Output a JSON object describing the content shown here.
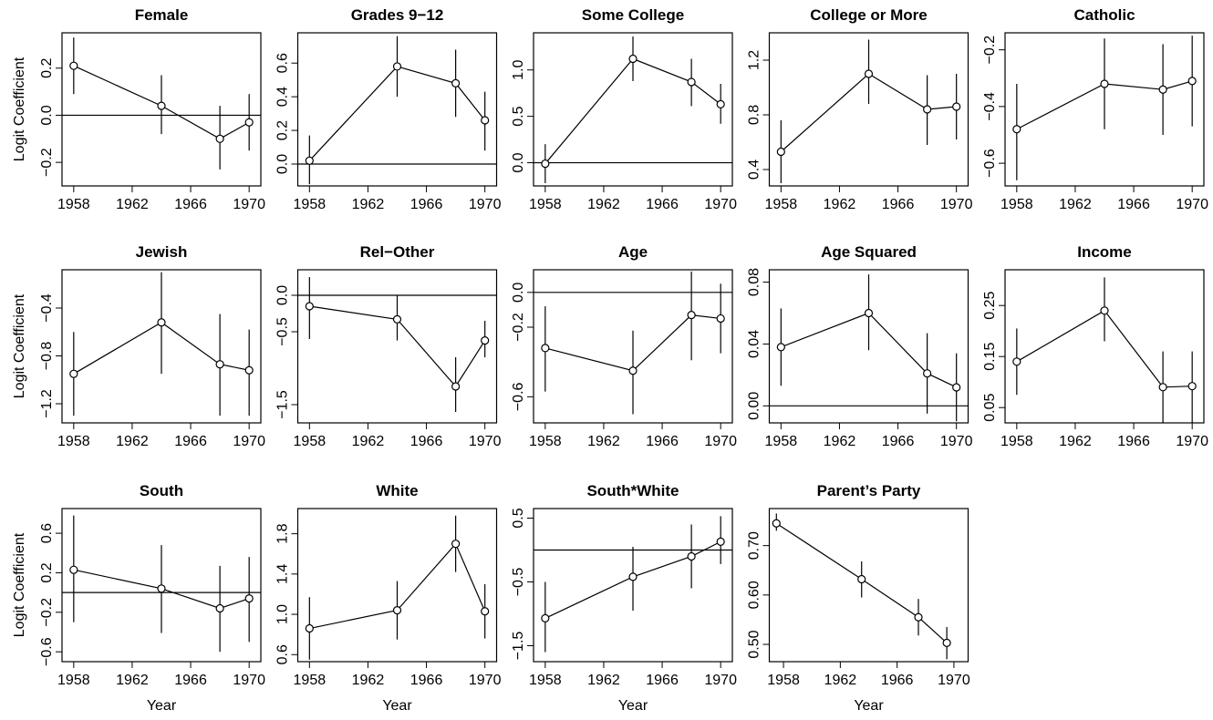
{
  "chart_data": [
    {
      "type": "line",
      "title": "Female",
      "y_label": "Logit Coefficient",
      "x": [
        1958,
        1964,
        1968,
        1970
      ],
      "values": [
        0.21,
        0.04,
        -0.1,
        -0.03
      ],
      "lower": [
        0.09,
        -0.08,
        -0.23,
        -0.15
      ],
      "upper": [
        0.33,
        0.17,
        0.04,
        0.09
      ],
      "reference_line": 0,
      "xlim": [
        1957.2,
        1970.8
      ],
      "xticks": [
        1958,
        1962,
        1966,
        1970
      ],
      "ylim": [
        -0.3,
        0.35
      ],
      "yticks": [
        {
          "value": -0.2,
          "label": "−0.2"
        },
        {
          "value": 0,
          "label": "0.0"
        },
        0.2
      ],
      "color": "#000000"
    },
    {
      "type": "line",
      "title": "Grades 9−12",
      "x": [
        1958,
        1964,
        1968,
        1970
      ],
      "values": [
        0.02,
        0.58,
        0.48,
        0.26
      ],
      "lower": [
        -0.12,
        0.4,
        0.28,
        0.08
      ],
      "upper": [
        0.17,
        0.76,
        0.68,
        0.43
      ],
      "reference_line": 0,
      "xlim": [
        1957.2,
        1970.8
      ],
      "xticks": [
        1958,
        1962,
        1966,
        1970
      ],
      "ylim": [
        -0.13,
        0.78
      ],
      "yticks": [
        {
          "value": 0,
          "label": "0.0"
        },
        0.2,
        0.4,
        0.6
      ],
      "color": "#000000"
    },
    {
      "type": "line",
      "title": "Some College",
      "x": [
        1958,
        1964,
        1968,
        1970
      ],
      "values": [
        -0.01,
        1.12,
        0.87,
        0.63
      ],
      "lower": [
        -0.22,
        0.88,
        0.61,
        0.42
      ],
      "upper": [
        0.2,
        1.36,
        1.12,
        0.85
      ],
      "reference_line": 0,
      "xlim": [
        1957.2,
        1970.8
      ],
      "xticks": [
        1958,
        1962,
        1966,
        1970
      ],
      "ylim": [
        -0.25,
        1.4
      ],
      "yticks": [
        {
          "value": 0,
          "label": "0.0"
        },
        0.5,
        {
          "value": 1,
          "label": "1.0"
        }
      ],
      "color": "#000000"
    },
    {
      "type": "line",
      "title": "College or More",
      "x": [
        1958,
        1964,
        1968,
        1970
      ],
      "values": [
        0.53,
        1.1,
        0.84,
        0.86
      ],
      "lower": [
        0.3,
        0.88,
        0.58,
        0.62
      ],
      "upper": [
        0.76,
        1.35,
        1.09,
        1.1
      ],
      "xlim": [
        1957.2,
        1970.8
      ],
      "xticks": [
        1958,
        1962,
        1966,
        1970
      ],
      "ylim": [
        0.28,
        1.4
      ],
      "yticks": [
        0.4,
        0.8,
        1.2
      ],
      "color": "#000000"
    },
    {
      "type": "line",
      "title": "Catholic",
      "x": [
        1958,
        1964,
        1968,
        1970
      ],
      "values": [
        -0.48,
        -0.32,
        -0.34,
        -0.31
      ],
      "lower": [
        -0.66,
        -0.48,
        -0.5,
        -0.47
      ],
      "upper": [
        -0.32,
        -0.16,
        -0.18,
        -0.15
      ],
      "xlim": [
        1957.2,
        1970.8
      ],
      "xticks": [
        1958,
        1962,
        1966,
        1970
      ],
      "ylim": [
        -0.68,
        -0.14
      ],
      "yticks": [
        {
          "value": -0.6,
          "label": "−0.6"
        },
        {
          "value": -0.4,
          "label": "−0.4"
        },
        {
          "value": -0.2,
          "label": "−0.2"
        }
      ],
      "color": "#000000"
    },
    {
      "type": "line",
      "title": "Jewish",
      "y_label": "Logit Coefficient",
      "x": [
        1958,
        1964,
        1968,
        1970
      ],
      "values": [
        -0.95,
        -0.52,
        -0.87,
        -0.92
      ],
      "lower": [
        -1.3,
        -0.95,
        -1.3,
        -1.3
      ],
      "upper": [
        -0.6,
        -0.1,
        -0.45,
        -0.58
      ],
      "xlim": [
        1957.2,
        1970.8
      ],
      "xticks": [
        1958,
        1962,
        1966,
        1970
      ],
      "ylim": [
        -1.36,
        -0.08
      ],
      "yticks": [
        {
          "value": -1.2,
          "label": "−1.2"
        },
        {
          "value": -0.8,
          "label": "−0.8"
        },
        {
          "value": -0.4,
          "label": "−0.4"
        }
      ],
      "color": "#000000"
    },
    {
      "type": "line",
      "title": "Rel−Other",
      "x": [
        1958,
        1964,
        1968,
        1970
      ],
      "values": [
        -0.15,
        -0.33,
        -1.25,
        -0.62
      ],
      "lower": [
        -0.6,
        -0.62,
        -1.6,
        -0.85
      ],
      "upper": [
        0.25,
        0.0,
        -0.85,
        -0.35
      ],
      "reference_line": 0,
      "xlim": [
        1957.2,
        1970.8
      ],
      "xticks": [
        1958,
        1962,
        1966,
        1970
      ],
      "ylim": [
        -1.75,
        0.35
      ],
      "yticks": [
        {
          "value": -1.5,
          "label": "−1.5"
        },
        {
          "value": -0.5,
          "label": "−0.5"
        },
        {
          "value": 0,
          "label": "0.0"
        }
      ],
      "color": "#000000"
    },
    {
      "type": "line",
      "title": "Age",
      "x": [
        1958,
        1964,
        1968,
        1970
      ],
      "values": [
        -0.32,
        -0.45,
        -0.13,
        -0.15
      ],
      "lower": [
        -0.57,
        -0.7,
        -0.39,
        -0.35
      ],
      "upper": [
        -0.08,
        -0.22,
        0.12,
        0.05
      ],
      "reference_line": 0,
      "xlim": [
        1957.2,
        1970.8
      ],
      "xticks": [
        1958,
        1962,
        1966,
        1970
      ],
      "ylim": [
        -0.75,
        0.13
      ],
      "yticks": [
        {
          "value": -0.6,
          "label": "−0.6"
        },
        {
          "value": -0.2,
          "label": "−0.2"
        },
        {
          "value": 0,
          "label": "0.0"
        }
      ],
      "color": "#000000"
    },
    {
      "type": "line",
      "title": "Age Squared",
      "x": [
        1958,
        1964,
        1968,
        1970
      ],
      "values": [
        0.038,
        0.06,
        0.021,
        0.012
      ],
      "lower": [
        0.013,
        0.036,
        -0.005,
        -0.01
      ],
      "upper": [
        0.063,
        0.085,
        0.047,
        0.034
      ],
      "reference_line": 0,
      "xlim": [
        1957.2,
        1970.8
      ],
      "xticks": [
        1958,
        1962,
        1966,
        1970
      ],
      "ylim": [
        -0.011,
        0.088
      ],
      "yticks": [
        {
          "value": 0,
          "label": "0.00"
        },
        0.04,
        0.08
      ],
      "color": "#000000"
    },
    {
      "type": "line",
      "title": "Income",
      "x": [
        1958,
        1964,
        1968,
        1970
      ],
      "values": [
        0.14,
        0.24,
        0.09,
        0.092
      ],
      "lower": [
        0.075,
        0.18,
        0.02,
        0.02
      ],
      "upper": [
        0.205,
        0.305,
        0.16,
        0.16
      ],
      "xlim": [
        1957.2,
        1970.8
      ],
      "xticks": [
        1958,
        1962,
        1966,
        1970
      ],
      "ylim": [
        0.02,
        0.32
      ],
      "yticks": [
        0.05,
        0.15,
        0.25
      ],
      "color": "#000000"
    },
    {
      "type": "line",
      "title": "South",
      "y_label": "Logit Coefficient",
      "x_label": "Year",
      "x": [
        1958,
        1964,
        1968,
        1970
      ],
      "values": [
        0.23,
        0.04,
        -0.16,
        -0.06
      ],
      "lower": [
        -0.3,
        -0.41,
        -0.6,
        -0.5
      ],
      "upper": [
        0.78,
        0.48,
        0.27,
        0.36
      ],
      "reference_line": 0,
      "xlim": [
        1957.2,
        1970.8
      ],
      "xticks": [
        1958,
        1962,
        1966,
        1970
      ],
      "ylim": [
        -0.7,
        0.85
      ],
      "yticks": [
        {
          "value": -0.6,
          "label": "−0.6"
        },
        {
          "value": -0.2,
          "label": "−0.2"
        },
        0.2,
        0.6
      ],
      "color": "#000000"
    },
    {
      "type": "line",
      "title": "White",
      "x_label": "Year",
      "x": [
        1958,
        1964,
        1968,
        1970
      ],
      "values": [
        0.86,
        1.04,
        1.7,
        1.03
      ],
      "lower": [
        0.55,
        0.75,
        1.42,
        0.76
      ],
      "upper": [
        1.17,
        1.33,
        1.98,
        1.3
      ],
      "xlim": [
        1957.2,
        1970.8
      ],
      "xticks": [
        1958,
        1962,
        1966,
        1970
      ],
      "ylim": [
        0.53,
        2.05
      ],
      "yticks": [
        0.6,
        {
          "value": 1,
          "label": "1.0"
        },
        1.4,
        1.8
      ],
      "color": "#000000"
    },
    {
      "type": "line",
      "title": "South*White",
      "x_label": "Year",
      "x": [
        1958,
        1964,
        1968,
        1970
      ],
      "values": [
        -1.07,
        -0.42,
        -0.1,
        0.13
      ],
      "lower": [
        -1.6,
        -0.95,
        -0.6,
        -0.22
      ],
      "upper": [
        -0.5,
        0.05,
        0.4,
        0.53
      ],
      "reference_line": 0,
      "xlim": [
        1957.2,
        1970.8
      ],
      "xticks": [
        1958,
        1962,
        1966,
        1970
      ],
      "ylim": [
        -1.75,
        0.65
      ],
      "yticks": [
        {
          "value": -1.5,
          "label": "−1.5"
        },
        {
          "value": -0.5,
          "label": "−0.5"
        },
        0.5
      ],
      "color": "#000000"
    },
    {
      "type": "line",
      "title": "Parent’s Party",
      "x_label": "Year",
      "x": [
        1957.5,
        1963.5,
        1967.5,
        1969.5
      ],
      "values": [
        0.745,
        0.632,
        0.555,
        0.503
      ],
      "lower": [
        0.73,
        0.595,
        0.518,
        0.47
      ],
      "upper": [
        0.765,
        0.668,
        0.592,
        0.535
      ],
      "xlim": [
        1957,
        1971
      ],
      "xticks": [
        1958,
        1962,
        1966,
        1970
      ],
      "ylim": [
        0.465,
        0.775
      ],
      "yticks": [
        {
          "value": 0.5,
          "label": "0.50"
        },
        {
          "value": 0.6,
          "label": "0.60"
        },
        {
          "value": 0.7,
          "label": "0.70"
        }
      ],
      "color": "#000000"
    }
  ]
}
